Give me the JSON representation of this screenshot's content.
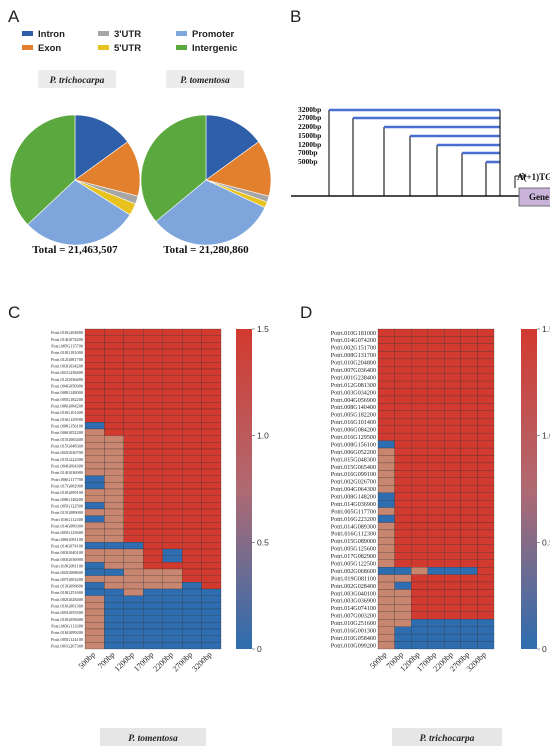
{
  "panels": {
    "a": "A",
    "b": "B",
    "c": "C",
    "d": "D"
  },
  "colors": {
    "intron": "#2e5fa8",
    "exon": "#e2802e",
    "utr3": "#a6a6a6",
    "utr5": "#e8c21e",
    "promoter": "#7ea6dc",
    "intergenic": "#5aa83e",
    "heat_high": "#d23a2f",
    "heat_mid": "#c8856f",
    "heat_low": "#2d6db0",
    "heat_purple": "#6f5aa8"
  },
  "legend": [
    {
      "key": "intron",
      "label": "Intron"
    },
    {
      "key": "exon",
      "label": "Exon"
    },
    {
      "key": "utr3",
      "label": "3'UTR"
    },
    {
      "key": "utr5",
      "label": "5'UTR"
    },
    {
      "key": "promoter",
      "label": "Promoter"
    },
    {
      "key": "intergenic",
      "label": "Intergenic"
    }
  ],
  "pie_labels": [
    "P. trichocarpa",
    "P. tomentosa"
  ],
  "totals": [
    "Total = 21,463,507",
    "Total = 21,280,860"
  ],
  "promoter_diagram": {
    "lengths": [
      "3200bp",
      "2700bp",
      "2200bp",
      "1500bp",
      "1200bp",
      "700bp",
      "500bp"
    ],
    "tss": "A(+1)TG",
    "gene": "Gene"
  },
  "heatmap_c": {
    "rows": [
      "Potri.010G204800",
      "Potri.014G074200",
      "Potri.005G115700",
      "Potri.010G181000",
      "Potri.012G081700",
      "Potri.003G034200",
      "Potri.001G238400",
      "Potri.012G036400",
      "Potri.004G056900",
      "Potri.008G148000",
      "Potri.005G182200",
      "Potri.006G084200",
      "Potri.016G101400",
      "Potri.016G129500",
      "Potri.008G156100",
      "Potri.006G052200",
      "Potri.015G065400",
      "Potri.015G048300",
      "Potri.002G026700",
      "Potri.015G222500",
      "Potri.004G064300",
      "Potri.014G036900",
      "Potri.006G117700",
      "Potri.017G082900",
      "Potri.010G099100",
      "Potri.008G148200",
      "Potri.005G122500",
      "Potri.015G089000",
      "Potri.016G112300",
      "Potri.014G089300",
      "Potri.005G125600",
      "Potri.006G081100",
      "Potri.014G074100",
      "Potri.003G040100",
      "Potri.003G036900",
      "Potri.019G081100",
      "Potri.002G068600",
      "Potri.007G003200",
      "Potri.013G099600",
      "Potri.010G251600",
      "Potri.002G028400",
      "Potri.016G001300",
      "Potri.005G055500",
      "Potri.010G058400",
      "Potri.003G113300",
      "Potri.016G099200",
      "Potri.005G124100",
      "Potri.001G267300"
    ],
    "columns": [
      "500bp",
      "700bp",
      "1200bp",
      "1700bp",
      "2200bp",
      "2700bp",
      "3200bp"
    ],
    "caption": "P. tomentosa"
  },
  "heatmap_d": {
    "rows": [
      "Potri.010G181000",
      "Potri.014G074200",
      "Potri.002G151700",
      "Potri.008G131700",
      "Potri.010G204800",
      "Potri.007G036400",
      "Potri.001G238400",
      "Potri.012G081300",
      "Potri.003G034200",
      "Potri.004G056900",
      "Potri.008G140400",
      "Potri.005G182200",
      "Potri.016G101400",
      "Potri.006G084200",
      "Potri.016G129500",
      "Potri.008G156100",
      "Potri.006G052200",
      "Potri.015G048300",
      "Potri.015G065400",
      "Potri.016G099100",
      "Potri.002G026700",
      "Potri.004G064300",
      "Potri.008G148200",
      "Potri.014G036900",
      "Potri.005G117700",
      "Potri.016G223200",
      "Potri.014G089300",
      "Potri.016G112300",
      "Potri.015G089000",
      "Potri.005G125600",
      "Potri.017G082900",
      "Potri.005G122500",
      "Potri.002G068600",
      "Potri.019G081100",
      "Potri.002G028400",
      "Potri.003G040100",
      "Potri.003G036900",
      "Potri.014G074100",
      "Potri.007G003200",
      "Potri.010G251600",
      "Potri.016G001300",
      "Potri.010G058400",
      "Potri.010G099200"
    ],
    "columns": [
      "500bp",
      "700bp",
      "1200bp",
      "1700bp",
      "2200bp",
      "2700bp",
      "3200bp"
    ],
    "caption": "P. trichocarpa"
  },
  "colorbar_ticks": [
    "1.5",
    "1.0",
    "0.5",
    "0"
  ],
  "chart_data": [
    {
      "type": "pie",
      "title": "P. trichocarpa",
      "total": "Total = 21,463,507",
      "slices": [
        {
          "label": "Intron",
          "value": 15
        },
        {
          "label": "Exon",
          "value": 14
        },
        {
          "label": "3'UTR",
          "value": 2
        },
        {
          "label": "5'UTR",
          "value": 3
        },
        {
          "label": "Promoter",
          "value": 29
        },
        {
          "label": "Intergenic",
          "value": 37
        }
      ]
    },
    {
      "type": "pie",
      "title": "P. tomentosa",
      "total": "Total = 21,280,860",
      "slices": [
        {
          "label": "Intron",
          "value": 15
        },
        {
          "label": "Exon",
          "value": 14
        },
        {
          "label": "3'UTR",
          "value": 1.5
        },
        {
          "label": "5'UTR",
          "value": 1.5
        },
        {
          "label": "Promoter",
          "value": 32
        },
        {
          "label": "Intergenic",
          "value": 36
        }
      ]
    },
    {
      "type": "heatmap",
      "title": "P. tomentosa",
      "zlim": [
        0,
        1.5
      ],
      "columns": [
        "500bp",
        "700bp",
        "1200bp",
        "1700bp",
        "2200bp",
        "2700bp",
        "3200bp"
      ],
      "values": [
        [
          1.5,
          1.5,
          1.5,
          1.5,
          1.5,
          1.5,
          1.5
        ],
        [
          1.5,
          1.5,
          1.5,
          1.5,
          1.5,
          1.5,
          1.5
        ],
        [
          1.5,
          1.5,
          1.5,
          1.5,
          1.5,
          1.5,
          1.5
        ],
        [
          1.5,
          1.5,
          1.5,
          1.5,
          1.5,
          1.5,
          1.5
        ],
        [
          1.5,
          1.5,
          1.5,
          1.5,
          1.5,
          1.5,
          1.5
        ],
        [
          1.5,
          1.5,
          1.5,
          1.5,
          1.5,
          1.5,
          1.5
        ],
        [
          1.5,
          1.5,
          1.5,
          1.5,
          1.5,
          1.5,
          1.5
        ],
        [
          1.5,
          1.5,
          1.5,
          1.5,
          1.5,
          1.5,
          1.5
        ],
        [
          1.5,
          1.5,
          1.5,
          1.5,
          1.5,
          1.5,
          1.5
        ],
        [
          1.5,
          1.5,
          1.5,
          1.5,
          1.5,
          1.5,
          1.5
        ],
        [
          1.5,
          1.5,
          1.5,
          1.5,
          1.5,
          1.5,
          1.5
        ],
        [
          1.5,
          1.5,
          1.5,
          1.5,
          1.5,
          1.5,
          1.5
        ],
        [
          1.5,
          1.5,
          1.5,
          1.5,
          1.5,
          1.5,
          1.5
        ],
        [
          1.5,
          1.5,
          1.5,
          1.5,
          1.5,
          1.5,
          1.5
        ],
        [
          0.2,
          1.5,
          1.5,
          1.5,
          1.5,
          1.5,
          1.5
        ],
        [
          1.2,
          1.5,
          1.5,
          1.5,
          1.5,
          1.5,
          1.5
        ],
        [
          1.2,
          1.2,
          1.5,
          1.5,
          1.5,
          1.5,
          1.5
        ],
        [
          1.2,
          1.2,
          1.5,
          1.5,
          1.5,
          1.5,
          1.5
        ],
        [
          1.2,
          1.2,
          1.5,
          1.5,
          1.5,
          1.5,
          1.5
        ],
        [
          1.2,
          1.2,
          1.5,
          1.5,
          1.5,
          1.5,
          1.5
        ],
        [
          1.2,
          1.2,
          1.5,
          1.5,
          1.5,
          1.5,
          1.5
        ],
        [
          1.2,
          1.2,
          1.5,
          1.5,
          1.5,
          1.5,
          1.5
        ],
        [
          0.2,
          1.2,
          1.5,
          1.5,
          1.5,
          1.5,
          1.5
        ],
        [
          0.2,
          1.2,
          1.5,
          1.5,
          1.5,
          1.5,
          1.5
        ],
        [
          1.2,
          1.2,
          1.5,
          1.5,
          1.5,
          1.5,
          1.5
        ],
        [
          1.2,
          1.2,
          1.5,
          1.5,
          1.5,
          1.5,
          1.5
        ],
        [
          0.2,
          1.2,
          1.5,
          1.5,
          1.5,
          1.5,
          1.5
        ],
        [
          1.2,
          1.2,
          1.5,
          1.5,
          1.5,
          1.5,
          1.5
        ],
        [
          0.2,
          1.2,
          1.5,
          1.5,
          1.5,
          1.5,
          1.5
        ],
        [
          1.2,
          1.2,
          1.5,
          1.5,
          1.5,
          1.5,
          1.5
        ],
        [
          1.2,
          1.2,
          1.5,
          1.5,
          1.5,
          1.5,
          1.5
        ],
        [
          1.2,
          1.2,
          1.5,
          1.5,
          1.5,
          1.5,
          1.5
        ],
        [
          0.2,
          0.2,
          0.2,
          1.5,
          1.5,
          1.5,
          1.5
        ],
        [
          1.2,
          1.2,
          1.2,
          1.5,
          0.2,
          1.5,
          1.5
        ],
        [
          1.2,
          1.2,
          1.2,
          1.5,
          0.2,
          1.5,
          1.5
        ],
        [
          0.2,
          1.2,
          1.2,
          1.5,
          1.5,
          1.5,
          1.5
        ],
        [
          0.2,
          0.2,
          1.2,
          1.2,
          1.2,
          1.5,
          1.5
        ],
        [
          1.2,
          1.2,
          1.2,
          1.2,
          1.2,
          1.5,
          1.5
        ],
        [
          0.2,
          1.2,
          1.2,
          1.2,
          1.2,
          0.2,
          1.5
        ],
        [
          0.2,
          0.2,
          1.2,
          0.2,
          0.2,
          0.2,
          0.2
        ],
        [
          1.2,
          0.2,
          0.2,
          0.2,
          0.2,
          0.2,
          0.2
        ],
        [
          1.2,
          0.2,
          0.2,
          0.2,
          0.2,
          0.2,
          0.2
        ],
        [
          1.2,
          0.2,
          0.2,
          0.2,
          0.2,
          0.2,
          0.2
        ],
        [
          1.2,
          0.2,
          0.2,
          0.2,
          0.2,
          0.2,
          0.2
        ],
        [
          1.2,
          0.2,
          0.2,
          0.2,
          0.2,
          0.2,
          0.2
        ],
        [
          1.2,
          0.2,
          0.2,
          0.2,
          0.2,
          0.2,
          0.2
        ],
        [
          1.2,
          0.2,
          0.2,
          0.2,
          0.2,
          0.2,
          0.2
        ],
        [
          1.2,
          0.2,
          0.2,
          0.2,
          0.2,
          0.2,
          0.2
        ]
      ]
    },
    {
      "type": "heatmap",
      "title": "P. trichocarpa",
      "zlim": [
        0,
        1.5
      ],
      "columns": [
        "500bp",
        "700bp",
        "1200bp",
        "1700bp",
        "2200bp",
        "2700bp",
        "3200bp"
      ],
      "values": [
        [
          1.5,
          1.5,
          1.5,
          1.5,
          1.5,
          1.5,
          1.5
        ],
        [
          1.5,
          1.5,
          1.5,
          1.5,
          1.5,
          1.5,
          1.5
        ],
        [
          1.5,
          1.5,
          1.5,
          1.5,
          1.5,
          1.5,
          1.5
        ],
        [
          1.5,
          1.5,
          1.5,
          1.5,
          1.5,
          1.5,
          1.5
        ],
        [
          1.5,
          1.5,
          1.5,
          1.5,
          1.5,
          1.5,
          1.5
        ],
        [
          1.5,
          1.5,
          1.5,
          1.5,
          1.5,
          1.5,
          1.5
        ],
        [
          1.5,
          1.5,
          1.5,
          1.5,
          1.5,
          1.5,
          1.5
        ],
        [
          1.5,
          1.5,
          1.5,
          1.5,
          1.5,
          1.5,
          1.5
        ],
        [
          1.5,
          1.5,
          1.5,
          1.5,
          1.5,
          1.5,
          1.5
        ],
        [
          1.5,
          1.5,
          1.5,
          1.5,
          1.5,
          1.5,
          1.5
        ],
        [
          1.5,
          1.5,
          1.5,
          1.5,
          1.5,
          1.5,
          1.5
        ],
        [
          1.5,
          1.5,
          1.5,
          1.5,
          1.5,
          1.5,
          1.5
        ],
        [
          1.5,
          1.5,
          1.5,
          1.5,
          1.5,
          1.5,
          1.5
        ],
        [
          1.5,
          1.5,
          1.5,
          1.5,
          1.5,
          1.5,
          1.5
        ],
        [
          1.5,
          1.5,
          1.5,
          1.5,
          1.5,
          1.5,
          1.5
        ],
        [
          0.2,
          1.5,
          1.5,
          1.5,
          1.5,
          1.5,
          1.5
        ],
        [
          1.2,
          1.5,
          1.5,
          1.5,
          1.5,
          1.5,
          1.5
        ],
        [
          1.2,
          1.5,
          1.5,
          1.5,
          1.5,
          1.5,
          1.5
        ],
        [
          1.2,
          1.5,
          1.5,
          1.5,
          1.5,
          1.5,
          1.5
        ],
        [
          1.2,
          1.5,
          1.5,
          1.5,
          1.5,
          1.5,
          1.5
        ],
        [
          1.2,
          1.5,
          1.5,
          1.5,
          1.5,
          1.5,
          1.5
        ],
        [
          1.2,
          1.5,
          1.5,
          1.5,
          1.5,
          1.5,
          1.5
        ],
        [
          0.2,
          1.5,
          1.5,
          1.5,
          1.5,
          1.5,
          1.5
        ],
        [
          0.2,
          1.5,
          1.5,
          1.5,
          1.5,
          1.5,
          1.5
        ],
        [
          1.2,
          1.5,
          1.5,
          1.5,
          1.5,
          1.5,
          1.5
        ],
        [
          0.2,
          1.5,
          1.5,
          1.5,
          1.5,
          1.5,
          1.5
        ],
        [
          1.2,
          1.5,
          1.5,
          1.5,
          1.5,
          1.5,
          1.5
        ],
        [
          1.2,
          1.5,
          1.5,
          1.5,
          1.5,
          1.5,
          1.5
        ],
        [
          1.2,
          1.5,
          1.5,
          1.5,
          1.5,
          1.5,
          1.5
        ],
        [
          1.2,
          1.5,
          1.5,
          1.5,
          1.5,
          1.5,
          1.5
        ],
        [
          1.2,
          1.5,
          1.5,
          1.5,
          1.5,
          1.5,
          1.5
        ],
        [
          1.2,
          1.5,
          1.5,
          1.5,
          1.5,
          1.5,
          1.5
        ],
        [
          0.2,
          0.2,
          1.2,
          0.2,
          0.2,
          0.2,
          1.5
        ],
        [
          1.2,
          1.2,
          1.5,
          1.5,
          1.5,
          1.5,
          1.5
        ],
        [
          1.2,
          0.2,
          1.5,
          1.5,
          1.5,
          1.5,
          1.5
        ],
        [
          1.2,
          1.2,
          1.5,
          1.5,
          1.5,
          1.5,
          1.5
        ],
        [
          1.2,
          1.2,
          1.5,
          1.5,
          1.5,
          1.5,
          1.5
        ],
        [
          1.2,
          1.2,
          1.5,
          1.5,
          1.5,
          1.5,
          1.5
        ],
        [
          1.2,
          1.2,
          1.5,
          1.5,
          1.5,
          1.5,
          1.5
        ],
        [
          1.2,
          1.2,
          0.2,
          0.2,
          0.2,
          0.2,
          0.2
        ],
        [
          1.2,
          0.2,
          0.2,
          0.2,
          0.2,
          0.2,
          0.2
        ],
        [
          1.2,
          0.2,
          0.2,
          0.2,
          0.2,
          0.2,
          0.2
        ],
        [
          1.2,
          0.2,
          0.2,
          0.2,
          0.2,
          0.2,
          0.2
        ]
      ]
    }
  ]
}
